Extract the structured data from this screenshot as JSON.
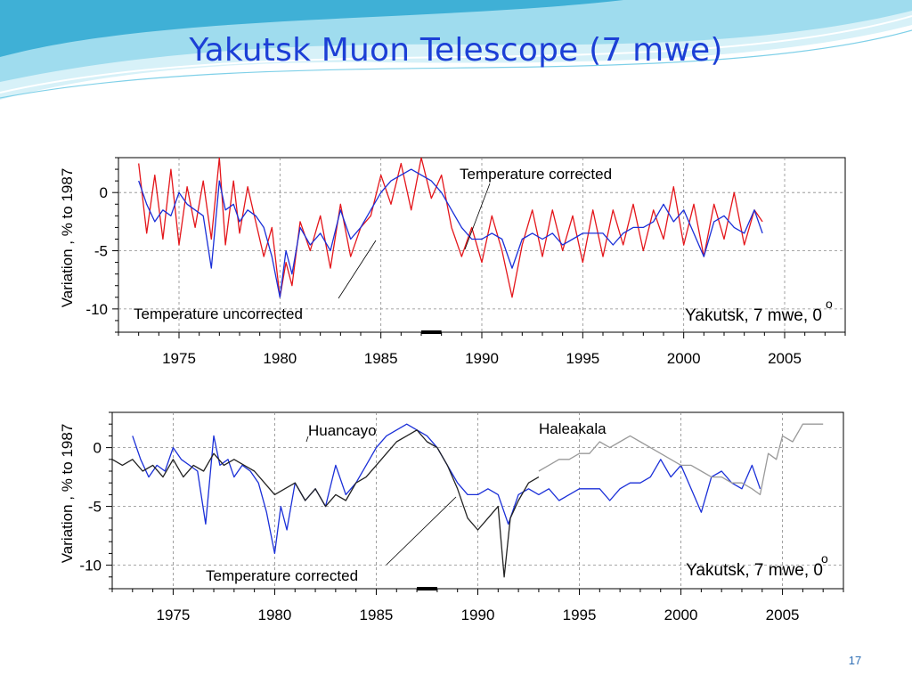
{
  "slide": {
    "title": "Yakutsk Muon Telescope (7 mwe)",
    "page_number": "17",
    "colors": {
      "title": "#1c3fd6",
      "wave_light": "#bfe9f5",
      "wave_mid": "#7fd0e8",
      "wave_dark": "#2ea7cf"
    }
  },
  "chart_data": [
    {
      "type": "line",
      "title": "",
      "xlabel": "",
      "ylabel": "Variation ,  % to 1987",
      "xlim": [
        1972,
        2008
      ],
      "ylim": [
        -12,
        3
      ],
      "xticks": [
        "1975",
        "1980",
        "1985",
        "1990",
        "1995",
        "2000",
        "2005"
      ],
      "yticks": [
        "0",
        "-5",
        "-10"
      ],
      "grid": true,
      "station_label": "Yakutsk, 7 mwe, 0",
      "degree_symbol": "o",
      "annotations": [
        {
          "text": "Temperature  corrected",
          "points_to": "blue"
        },
        {
          "text": "Temperature uncorrected",
          "points_to": "red"
        }
      ],
      "reference_period": [
        1987.0,
        1988.0
      ],
      "series": [
        {
          "color": "#e4161b",
          "x": [
            1973.0,
            1973.4,
            1973.8,
            1974.2,
            1974.6,
            1975.0,
            1975.4,
            1975.8,
            1976.2,
            1976.6,
            1977.0,
            1977.3,
            1977.7,
            1978.0,
            1978.4,
            1978.8,
            1979.2,
            1979.6,
            1980.0,
            1980.3,
            1980.6,
            1981.0,
            1981.5,
            1982.0,
            1982.5,
            1983.0,
            1983.5,
            1984.0,
            1984.5,
            1985.0,
            1985.5,
            1986.0,
            1986.5,
            1987.0,
            1987.5,
            1988.0,
            1988.5,
            1989.0,
            1989.5,
            1990.0,
            1990.5,
            1991.0,
            1991.5,
            1992.0,
            1992.5,
            1993.0,
            1993.5,
            1994.0,
            1994.5,
            1995.0,
            1995.5,
            1996.0,
            1996.5,
            1997.0,
            1997.5,
            1998.0,
            1998.5,
            1999.0,
            1999.5,
            2000.0,
            2000.5,
            2001.0,
            2001.5,
            2002.0,
            2002.5,
            2003.0,
            2003.5,
            2003.9
          ],
          "y": [
            2.5,
            -3.5,
            1.5,
            -4.0,
            2.0,
            -4.5,
            0.5,
            -3.0,
            1.0,
            -4.0,
            3.0,
            -4.5,
            1.0,
            -3.5,
            0.5,
            -2.5,
            -5.5,
            -3.0,
            -9.0,
            -6.0,
            -8.0,
            -2.5,
            -5.0,
            -2.0,
            -6.5,
            -1.0,
            -5.5,
            -3.0,
            -2.0,
            1.5,
            -1.0,
            2.5,
            -1.5,
            3.0,
            -0.5,
            1.5,
            -3.0,
            -5.5,
            -3.0,
            -6.0,
            -2.0,
            -5.0,
            -9.0,
            -4.5,
            -1.5,
            -5.5,
            -1.5,
            -5.0,
            -2.0,
            -6.0,
            -1.5,
            -5.5,
            -1.5,
            -4.5,
            -1.0,
            -5.0,
            -1.5,
            -4.0,
            0.5,
            -4.5,
            -1.0,
            -5.5,
            -1.0,
            -4.0,
            0.0,
            -4.5,
            -1.5,
            -2.5
          ]
        },
        {
          "color": "#1a2fd8",
          "x": [
            1973.0,
            1973.4,
            1973.8,
            1974.2,
            1974.6,
            1975.0,
            1975.4,
            1975.8,
            1976.2,
            1976.6,
            1977.0,
            1977.3,
            1977.7,
            1978.0,
            1978.4,
            1978.8,
            1979.2,
            1979.6,
            1980.0,
            1980.3,
            1980.6,
            1981.0,
            1981.5,
            1982.0,
            1982.5,
            1983.0,
            1983.5,
            1984.0,
            1984.5,
            1985.0,
            1985.5,
            1986.0,
            1986.5,
            1987.0,
            1987.5,
            1988.0,
            1988.5,
            1989.0,
            1989.5,
            1990.0,
            1990.5,
            1991.0,
            1991.5,
            1992.0,
            1992.5,
            1993.0,
            1993.5,
            1994.0,
            1994.5,
            1995.0,
            1995.5,
            1996.0,
            1996.5,
            1997.0,
            1997.5,
            1998.0,
            1998.5,
            1999.0,
            1999.5,
            2000.0,
            2000.5,
            2001.0,
            2001.5,
            2002.0,
            2002.5,
            2003.0,
            2003.5,
            2003.9
          ],
          "y": [
            1.0,
            -1.0,
            -2.5,
            -1.5,
            -2.0,
            0.0,
            -1.0,
            -1.5,
            -2.0,
            -6.5,
            1.0,
            -1.5,
            -1.0,
            -2.5,
            -1.5,
            -2.0,
            -3.0,
            -5.5,
            -9.0,
            -5.0,
            -7.0,
            -3.0,
            -4.5,
            -3.5,
            -5.0,
            -1.5,
            -4.0,
            -3.0,
            -1.5,
            0.0,
            1.0,
            1.5,
            2.0,
            1.5,
            1.0,
            0.0,
            -1.5,
            -3.0,
            -4.0,
            -4.0,
            -3.5,
            -4.0,
            -6.5,
            -4.0,
            -3.5,
            -4.0,
            -3.5,
            -4.5,
            -4.0,
            -3.5,
            -3.5,
            -3.5,
            -4.5,
            -3.5,
            -3.0,
            -3.0,
            -2.5,
            -1.0,
            -2.5,
            -1.5,
            -3.5,
            -5.5,
            -2.5,
            -2.0,
            -3.0,
            -3.5,
            -1.5,
            -3.5
          ]
        }
      ]
    },
    {
      "type": "line",
      "title": "",
      "xlabel": "",
      "ylabel": "Variation ,  % to 1987",
      "xlim": [
        1972,
        2008
      ],
      "ylim": [
        -12,
        3
      ],
      "xticks": [
        "1975",
        "1980",
        "1985",
        "1990",
        "1995",
        "2000",
        "2005"
      ],
      "yticks": [
        "0",
        "-5",
        "-10"
      ],
      "grid": true,
      "station_label": "Yakutsk, 7 mwe, 0",
      "degree_symbol": "o",
      "annotations": [
        {
          "text": "Huancayo",
          "points_to": "black"
        },
        {
          "text": "Haleakala",
          "points_to": "gray"
        },
        {
          "text": "Temperature  corrected",
          "points_to": "blue"
        }
      ],
      "reference_period": [
        1987.0,
        1988.0
      ],
      "series": [
        {
          "color": "#1a2fd8",
          "x": [
            1973.0,
            1973.4,
            1973.8,
            1974.2,
            1974.6,
            1975.0,
            1975.4,
            1975.8,
            1976.2,
            1976.6,
            1977.0,
            1977.3,
            1977.7,
            1978.0,
            1978.4,
            1978.8,
            1979.2,
            1979.6,
            1980.0,
            1980.3,
            1980.6,
            1981.0,
            1981.5,
            1982.0,
            1982.5,
            1983.0,
            1983.5,
            1984.0,
            1984.5,
            1985.0,
            1985.5,
            1986.0,
            1986.5,
            1987.0,
            1987.5,
            1988.0,
            1988.5,
            1989.0,
            1989.5,
            1990.0,
            1990.5,
            1991.0,
            1991.5,
            1992.0,
            1992.5,
            1993.0,
            1993.5,
            1994.0,
            1994.5,
            1995.0,
            1995.5,
            1996.0,
            1996.5,
            1997.0,
            1997.5,
            1998.0,
            1998.5,
            1999.0,
            1999.5,
            2000.0,
            2000.5,
            2001.0,
            2001.5,
            2002.0,
            2002.5,
            2003.0,
            2003.5,
            2003.9
          ],
          "y": [
            1.0,
            -1.0,
            -2.5,
            -1.5,
            -2.0,
            0.0,
            -1.0,
            -1.5,
            -2.0,
            -6.5,
            1.0,
            -1.5,
            -1.0,
            -2.5,
            -1.5,
            -2.0,
            -3.0,
            -5.5,
            -9.0,
            -5.0,
            -7.0,
            -3.0,
            -4.5,
            -3.5,
            -5.0,
            -1.5,
            -4.0,
            -3.0,
            -1.5,
            0.0,
            1.0,
            1.5,
            2.0,
            1.5,
            1.0,
            0.0,
            -1.5,
            -3.0,
            -4.0,
            -4.0,
            -3.5,
            -4.0,
            -6.5,
            -4.0,
            -3.5,
            -4.0,
            -3.5,
            -4.5,
            -4.0,
            -3.5,
            -3.5,
            -3.5,
            -4.5,
            -3.5,
            -3.0,
            -3.0,
            -2.5,
            -1.0,
            -2.5,
            -1.5,
            -3.5,
            -5.5,
            -2.5,
            -2.0,
            -3.0,
            -3.5,
            -1.5,
            -3.5
          ]
        },
        {
          "color": "#222222",
          "x": [
            1972.0,
            1972.5,
            1973.0,
            1973.5,
            1974.0,
            1974.5,
            1975.0,
            1975.5,
            1976.0,
            1976.5,
            1977.0,
            1977.5,
            1978.0,
            1978.5,
            1979.0,
            1979.5,
            1980.0,
            1980.5,
            1981.0,
            1981.5,
            1982.0,
            1982.5,
            1983.0,
            1983.5,
            1984.0,
            1984.5,
            1985.0,
            1985.5,
            1986.0,
            1986.5,
            1987.0,
            1987.5,
            1988.0,
            1988.5,
            1989.0,
            1989.5,
            1990.0,
            1990.5,
            1991.0,
            1991.3,
            1991.6,
            1992.0,
            1992.5,
            1993.0
          ],
          "y": [
            -1.0,
            -1.5,
            -1.0,
            -2.0,
            -1.5,
            -2.5,
            -1.0,
            -2.5,
            -1.5,
            -2.0,
            -0.5,
            -1.5,
            -1.0,
            -1.5,
            -2.0,
            -3.0,
            -4.0,
            -3.5,
            -3.0,
            -4.5,
            -3.5,
            -5.0,
            -4.0,
            -4.5,
            -3.0,
            -2.5,
            -1.5,
            -0.5,
            0.5,
            1.0,
            1.5,
            0.5,
            0.0,
            -1.5,
            -3.5,
            -6.0,
            -7.0,
            -6.0,
            -5.0,
            -11.0,
            -6.0,
            -4.5,
            -3.0,
            -2.5
          ]
        },
        {
          "color": "#9a9a9a",
          "x": [
            1993.0,
            1993.5,
            1994.0,
            1994.5,
            1995.0,
            1995.5,
            1996.0,
            1996.5,
            1997.0,
            1997.5,
            1998.0,
            1998.5,
            1999.0,
            1999.5,
            2000.0,
            2000.5,
            2001.0,
            2001.5,
            2002.0,
            2002.5,
            2003.0,
            2003.5,
            2003.9,
            2004.3,
            2004.7,
            2005.0,
            2005.5,
            2006.0,
            2006.5,
            2007.0
          ],
          "y": [
            -2.0,
            -1.5,
            -1.0,
            -1.0,
            -0.5,
            -0.5,
            0.5,
            0.0,
            0.5,
            1.0,
            0.5,
            0.0,
            -0.5,
            -1.0,
            -1.5,
            -1.5,
            -2.0,
            -2.5,
            -2.5,
            -3.0,
            -3.0,
            -3.5,
            -4.0,
            -0.5,
            -1.0,
            1.0,
            0.5,
            2.0,
            2.0,
            2.0
          ]
        }
      ]
    }
  ]
}
